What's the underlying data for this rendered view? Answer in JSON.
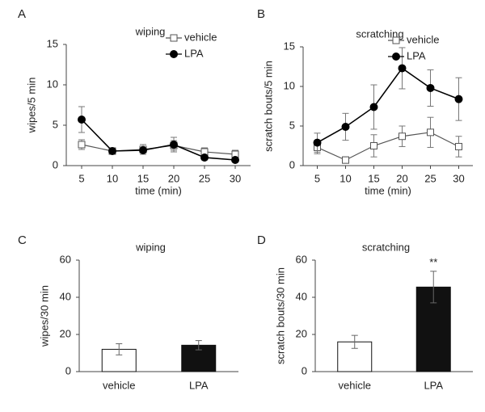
{
  "chart_data": [
    {
      "type": "line",
      "panel_label": "A",
      "title": "wiping",
      "ylabel": "wipes/5 min",
      "xlabel": "time (min)",
      "x": [
        5,
        10,
        15,
        20,
        25,
        30
      ],
      "xlim": [
        2.5,
        32.5
      ],
      "xticks": [
        5,
        10,
        15,
        20,
        25,
        30
      ],
      "ylim": [
        0,
        15
      ],
      "yticks": [
        0,
        5,
        10,
        15
      ],
      "series": [
        {
          "name": "vehicle",
          "color": "#555555",
          "marker": "square",
          "marker_fill": "#ffffff",
          "values": [
            2.6,
            1.8,
            2.0,
            2.5,
            1.7,
            1.4
          ],
          "errors": [
            0.6,
            0.4,
            0.6,
            0.6,
            0.5,
            0.5
          ]
        },
        {
          "name": "LPA",
          "color": "#000000",
          "marker": "circle",
          "marker_fill": "#000000",
          "values": [
            5.7,
            1.8,
            1.9,
            2.6,
            1.0,
            0.7
          ],
          "errors": [
            1.6,
            0.3,
            0.5,
            0.9,
            0.3,
            0.2
          ]
        }
      ]
    },
    {
      "type": "line",
      "panel_label": "B",
      "title": "scratching",
      "ylabel": "scratch bouts/5 min",
      "xlabel": "time (min)",
      "x": [
        5,
        10,
        15,
        20,
        25,
        30
      ],
      "xlim": [
        2.5,
        32.5
      ],
      "xticks": [
        5,
        10,
        15,
        20,
        25,
        30
      ],
      "ylim": [
        0,
        15
      ],
      "yticks": [
        0,
        5,
        10,
        15
      ],
      "series": [
        {
          "name": "vehicle",
          "color": "#555555",
          "marker": "square",
          "marker_fill": "#ffffff",
          "values": [
            2.3,
            0.7,
            2.5,
            3.7,
            4.2,
            2.4
          ],
          "errors": [
            0.8,
            0.4,
            1.4,
            1.3,
            1.9,
            1.3
          ]
        },
        {
          "name": "LPA",
          "color": "#000000",
          "marker": "circle",
          "marker_fill": "#000000",
          "values": [
            2.9,
            4.9,
            7.4,
            12.3,
            9.8,
            8.4
          ],
          "errors": [
            1.2,
            1.7,
            2.8,
            2.6,
            2.3,
            2.7
          ]
        }
      ]
    },
    {
      "type": "bar",
      "panel_label": "C",
      "title": "wiping",
      "ylabel": "wipes/30 min",
      "categories": [
        "vehicle",
        "LPA"
      ],
      "values": [
        12,
        14.2
      ],
      "errors": [
        3,
        2.5
      ],
      "colors": [
        "#ffffff",
        "#111111"
      ],
      "ylim": [
        0,
        60
      ],
      "yticks": [
        0,
        20,
        40,
        60
      ]
    },
    {
      "type": "bar",
      "panel_label": "D",
      "title": "scratching",
      "ylabel": "scratch bouts/30 min",
      "categories": [
        "vehicle",
        "LPA"
      ],
      "values": [
        16,
        45.5
      ],
      "errors": [
        3.5,
        8.5
      ],
      "colors": [
        "#ffffff",
        "#111111"
      ],
      "ylim": [
        0,
        60
      ],
      "yticks": [
        0,
        20,
        40,
        60
      ],
      "annotations": [
        {
          "text": "**",
          "x": "LPA"
        }
      ]
    }
  ]
}
